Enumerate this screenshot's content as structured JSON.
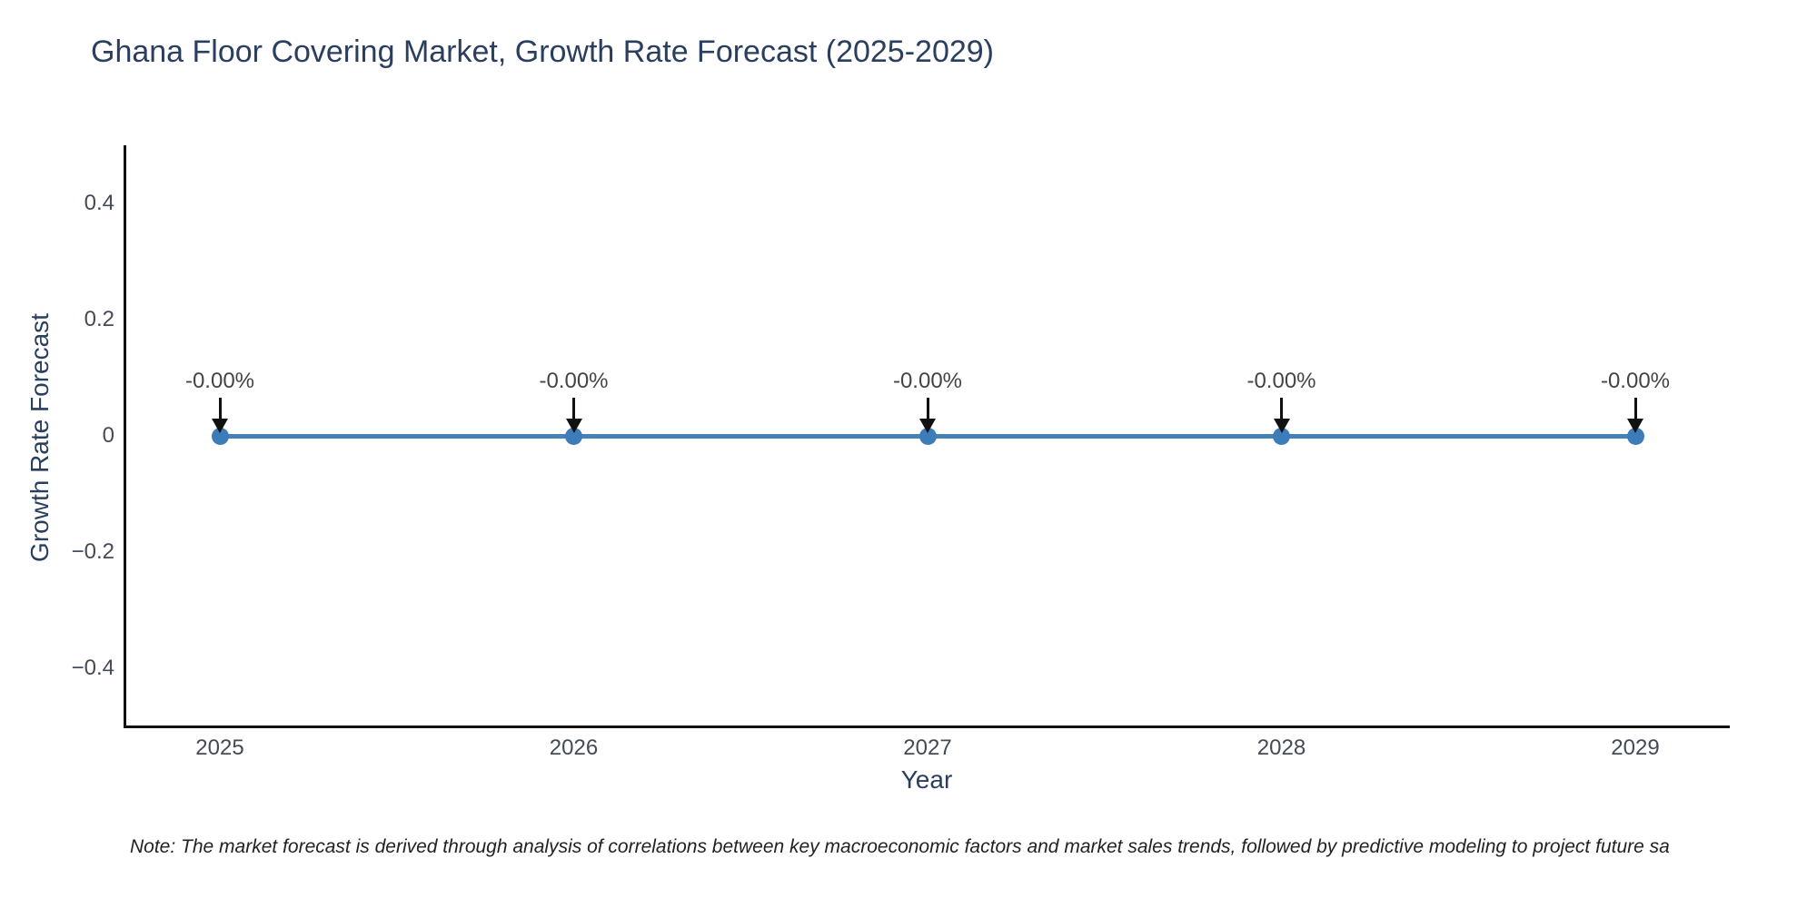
{
  "chart_data": {
    "type": "line",
    "title": "Ghana Floor Covering Market, Growth Rate Forecast (2025-2029)",
    "x": [
      "2025",
      "2026",
      "2027",
      "2028",
      "2029"
    ],
    "series": [
      {
        "name": "Growth Rate Forecast",
        "values": [
          0,
          0,
          0,
          0,
          0
        ],
        "point_labels": [
          "-0.00%",
          "-0.00%",
          "-0.00%",
          "-0.00%",
          "-0.00%"
        ]
      }
    ],
    "xlabel": "Year",
    "ylabel": "Growth Rate Forecast",
    "yticks": [
      {
        "value": 0.4,
        "label": "0.4"
      },
      {
        "value": 0.2,
        "label": "0.2"
      },
      {
        "value": 0,
        "label": "0"
      },
      {
        "value": -0.2,
        "label": "−0.2"
      },
      {
        "value": -0.4,
        "label": "−0.4"
      }
    ],
    "ylim": [
      -0.5,
      0.5
    ],
    "grid": false,
    "legend_position": "none",
    "annotation_style": "label-with-down-arrow",
    "note": "Note: The market forecast is derived through analysis of correlations between key macroeconomic factors and market sales trends, followed by predictive modeling to project future sa",
    "colors": {
      "line": "#4682b4",
      "marker": "#3c7cb8",
      "axis": "#111111",
      "arrow": "#111111",
      "title": "#2a3f5f",
      "axis_title": "#2a3f5f",
      "tick": "#444b57",
      "annotation": "#444444",
      "note": "#222222"
    }
  }
}
